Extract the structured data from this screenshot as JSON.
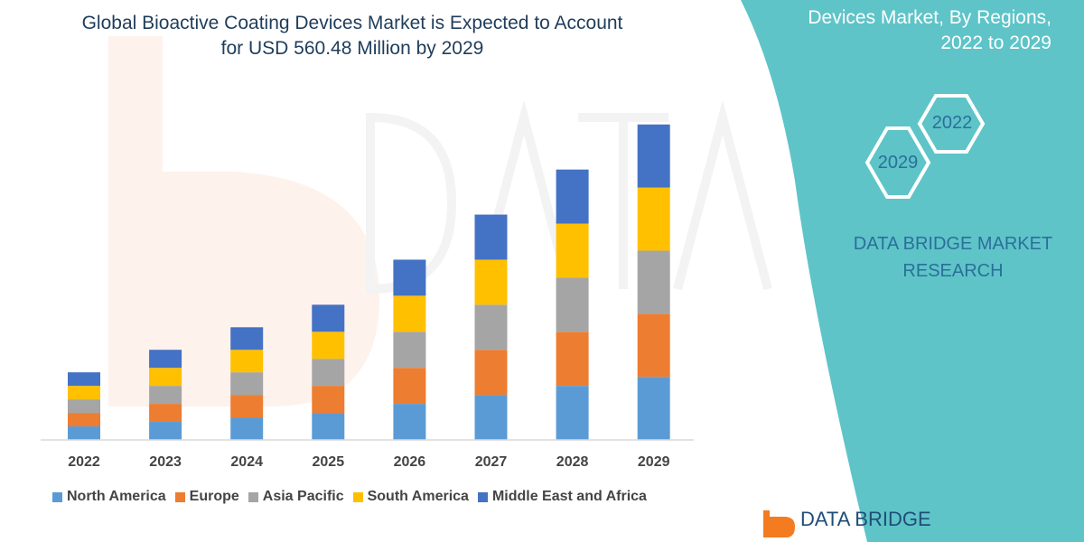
{
  "title_line1": "Global Bioactive Coating Devices Market is Expected to Account",
  "title_line2": "for USD 560.48 Million by 2029",
  "side_title_line1": "Devices Market, By Regions,",
  "side_title_line2": "2022 to 2029",
  "hex_labels": [
    "2022",
    "2029"
  ],
  "brand_line1": "DATA BRIDGE MARKET",
  "brand_line2": "RESEARCH",
  "logo_text": "DATA BRIDGE",
  "colors": {
    "panel": "#5ec4c8",
    "title": "#1f3d5a",
    "brand": "#2b6f9a"
  },
  "chart_data": {
    "type": "bar",
    "stacked": true,
    "categories": [
      "2022",
      "2023",
      "2024",
      "2025",
      "2026",
      "2027",
      "2028",
      "2029"
    ],
    "series": [
      {
        "name": "North America",
        "color": "#5b9bd5",
        "values": [
          15,
          20,
          25,
          30,
          40,
          50,
          60,
          70
        ]
      },
      {
        "name": "Europe",
        "color": "#ed7d31",
        "values": [
          15,
          20,
          25,
          30,
          40,
          50,
          60,
          70
        ]
      },
      {
        "name": "Asia Pacific",
        "color": "#a5a5a5",
        "values": [
          15,
          20,
          25,
          30,
          40,
          50,
          60,
          70
        ]
      },
      {
        "name": "South America",
        "color": "#ffc000",
        "values": [
          15,
          20,
          25,
          30,
          40,
          50,
          60,
          70
        ]
      },
      {
        "name": "Middle East and Africa",
        "color": "#4472c4",
        "values": [
          15,
          20,
          25,
          30,
          40,
          50,
          60,
          70
        ]
      }
    ],
    "ylim": [
      0,
      360
    ],
    "y_axis_shown": false,
    "grid": false,
    "legend_placement": "bottom"
  }
}
